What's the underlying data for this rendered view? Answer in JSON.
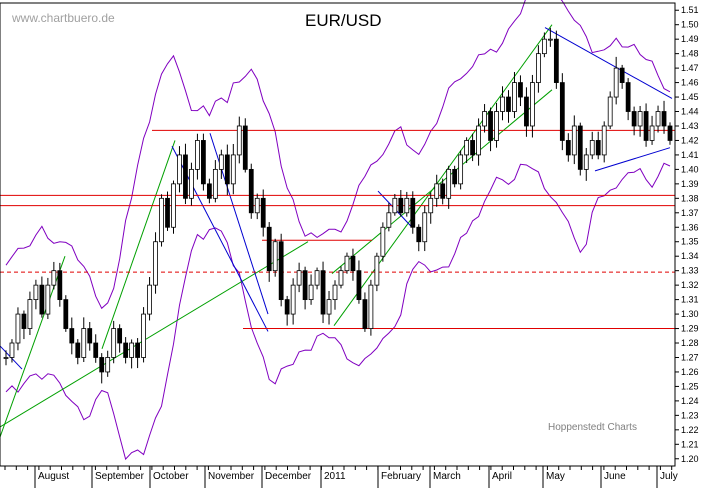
{
  "chart_data": {
    "type": "candlestick",
    "title": "EUR/USD",
    "watermark": "www.chartbuero.de",
    "credit": "Hoppenstedt Charts",
    "y_axis": {
      "position": "right",
      "min": 1.195,
      "max": 1.515,
      "ticks": [
        1.2,
        1.21,
        1.22,
        1.23,
        1.24,
        1.25,
        1.26,
        1.27,
        1.28,
        1.29,
        1.3,
        1.31,
        1.32,
        1.33,
        1.34,
        1.35,
        1.36,
        1.37,
        1.38,
        1.39,
        1.4,
        1.41,
        1.42,
        1.43,
        1.44,
        1.45,
        1.46,
        1.47,
        1.48,
        1.49,
        1.5,
        1.51
      ]
    },
    "x_axis": {
      "month_labels": [
        "August",
        "September",
        "October",
        "November",
        "December",
        "2011",
        "February",
        "March",
        "April",
        "May",
        "June",
        "July"
      ]
    },
    "horizontal_levels": [
      {
        "value": 1.427,
        "style": "solid",
        "color": "#e00000"
      },
      {
        "value": 1.382,
        "style": "solid",
        "color": "#e00000"
      },
      {
        "value": 1.375,
        "style": "solid",
        "color": "#e00000"
      },
      {
        "value": 1.329,
        "style": "dashed",
        "color": "#e00000"
      },
      {
        "value": 1.29,
        "style": "solid",
        "color": "#e00000"
      }
    ],
    "colors": {
      "candles": "#000000",
      "bollinger": "#8000c0",
      "uptrend": "#00a000",
      "downtrend": "#0000d0",
      "levels": "#e00000"
    },
    "close_path": [
      1.27,
      1.28,
      1.3,
      1.29,
      1.31,
      1.32,
      1.3,
      1.32,
      1.33,
      1.31,
      1.29,
      1.28,
      1.27,
      1.29,
      1.28,
      1.27,
      1.26,
      1.27,
      1.29,
      1.28,
      1.27,
      1.28,
      1.27,
      1.3,
      1.32,
      1.35,
      1.38,
      1.36,
      1.39,
      1.41,
      1.38,
      1.4,
      1.42,
      1.39,
      1.38,
      1.4,
      1.41,
      1.39,
      1.41,
      1.43,
      1.4,
      1.37,
      1.38,
      1.36,
      1.33,
      1.35,
      1.31,
      1.3,
      1.32,
      1.33,
      1.31,
      1.32,
      1.33,
      1.3,
      1.31,
      1.32,
      1.33,
      1.34,
      1.33,
      1.31,
      1.29,
      1.32,
      1.34,
      1.36,
      1.37,
      1.38,
      1.37,
      1.38,
      1.36,
      1.35,
      1.37,
      1.38,
      1.39,
      1.38,
      1.4,
      1.39,
      1.41,
      1.42,
      1.41,
      1.43,
      1.44,
      1.42,
      1.44,
      1.45,
      1.44,
      1.46,
      1.45,
      1.43,
      1.46,
      1.48,
      1.49,
      1.49,
      1.46,
      1.42,
      1.41,
      1.43,
      1.4,
      1.41,
      1.42,
      1.41,
      1.43,
      1.45,
      1.47,
      1.46,
      1.44,
      1.43,
      1.44,
      1.42,
      1.43,
      1.44,
      1.43,
      1.42
    ]
  }
}
